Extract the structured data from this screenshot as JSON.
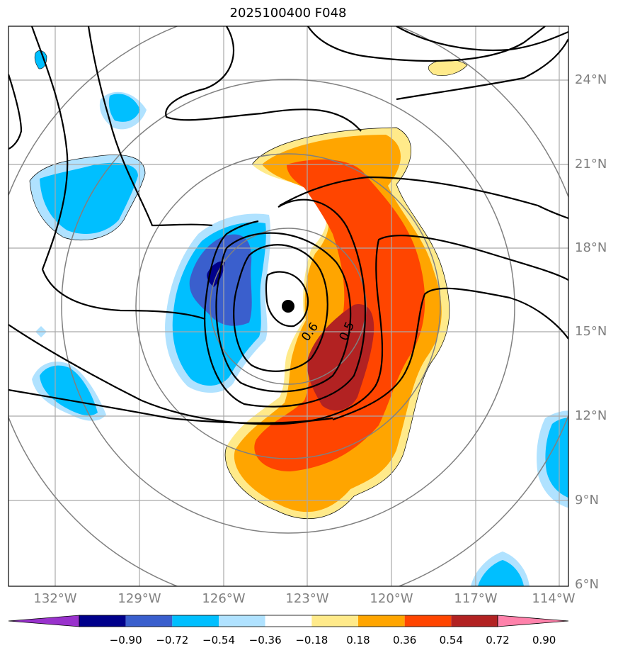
{
  "title": "2025100400 F048",
  "lat_labels": [
    "24°N",
    "21°N",
    "18°N",
    "15°N",
    "12°N",
    "9°N",
    "6°N"
  ],
  "lon_labels": [
    "132°W",
    "129°W",
    "126°W",
    "123°W",
    "120°W",
    "117°W",
    "114°W"
  ],
  "contour_labels": [
    "0.6",
    "0.5"
  ],
  "colorbar": {
    "ticks": [
      "−0.90",
      "−0.72",
      "−0.54",
      "−0.36",
      "−0.18",
      "0.18",
      "0.36",
      "0.54",
      "0.72",
      "0.90"
    ],
    "colors": [
      "#9932cc",
      "#00008b",
      "#3a5fcd",
      "#00bfff",
      "#b0e2ff",
      "#ffffff",
      "#ffea8a",
      "#ffa500",
      "#ff4500",
      "#b22222",
      "#ff82ab"
    ]
  },
  "palette": {
    "darkblue": "#00008b",
    "blue": "#3a5fcd",
    "cyan": "#00bfff",
    "lightblue": "#b0e2ff",
    "yellow": "#ffea8a",
    "orange": "#ffa500",
    "redorange": "#ff4500",
    "darkred": "#b22222",
    "grid": "#a9a9a9",
    "circle": "#808080",
    "contour": "#000000"
  },
  "center_marker": {
    "lon": "123.7°W",
    "lat": "15.9°N"
  }
}
